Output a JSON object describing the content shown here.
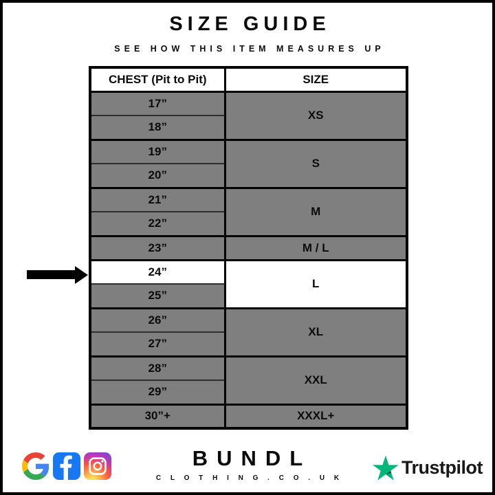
{
  "header": {
    "title": "SIZE GUIDE",
    "subtitle": "SEE HOW THIS ITEM MEASURES UP"
  },
  "table": {
    "headers": {
      "chest": "CHEST (Pit to Pit)",
      "size": "SIZE"
    },
    "groups": [
      {
        "size": "XS",
        "chests": [
          "17”",
          "18”"
        ]
      },
      {
        "size": "S",
        "chests": [
          "19”",
          "20”"
        ]
      },
      {
        "size": "M",
        "chests": [
          "21”",
          "22”"
        ]
      },
      {
        "size": "M / L",
        "chests": [
          "23”"
        ]
      },
      {
        "size": "L",
        "chests": [
          "24”",
          "25”"
        ],
        "highlighted": true
      },
      {
        "size": "XL",
        "chests": [
          "26”",
          "27”"
        ]
      },
      {
        "size": "XXL",
        "chests": [
          "28”",
          "29”"
        ]
      },
      {
        "size": "XXXL+",
        "chests": [
          "30”+"
        ]
      }
    ],
    "highlighted_measurement": "24”",
    "highlighted_size": "L"
  },
  "chart_data": {
    "type": "table",
    "title": "SIZE GUIDE",
    "subtitle": "SEE HOW THIS ITEM MEASURES UP",
    "columns": [
      "CHEST (Pit to Pit)",
      "SIZE"
    ],
    "rows": [
      [
        "17”",
        "XS"
      ],
      [
        "18”",
        "XS"
      ],
      [
        "19”",
        "S"
      ],
      [
        "20”",
        "S"
      ],
      [
        "21”",
        "M"
      ],
      [
        "22”",
        "M"
      ],
      [
        "23”",
        "M / L"
      ],
      [
        "24”",
        "L"
      ],
      [
        "25”",
        "L"
      ],
      [
        "26”",
        "XL"
      ],
      [
        "27”",
        "XL"
      ],
      [
        "28”",
        "XXL"
      ],
      [
        "29”",
        "XXL"
      ],
      [
        "30”+",
        "XXXL+"
      ]
    ],
    "highlighted_row": [
      "24”",
      "L"
    ],
    "layout": {
      "grid": true,
      "highlight_style": "white row with black arrow on left"
    }
  },
  "footer": {
    "brand_name": "BUNDL",
    "brand_domain": "C L O T H I N G . C O . U K",
    "social_icons": [
      "google-icon",
      "facebook-icon",
      "instagram-icon"
    ],
    "trustpilot_label": "Trustpilot"
  },
  "colors": {
    "cell_gray": "#7f7f7f",
    "highlight_white": "#ffffff",
    "border_black": "#000000",
    "trustpilot_green": "#00b67a",
    "trustpilot_dark_green": "#005128",
    "facebook_blue": "#1877f2",
    "google_blue": "#4285f4",
    "google_red": "#ea4335",
    "google_yellow": "#fbbc05",
    "google_green": "#34a853"
  }
}
